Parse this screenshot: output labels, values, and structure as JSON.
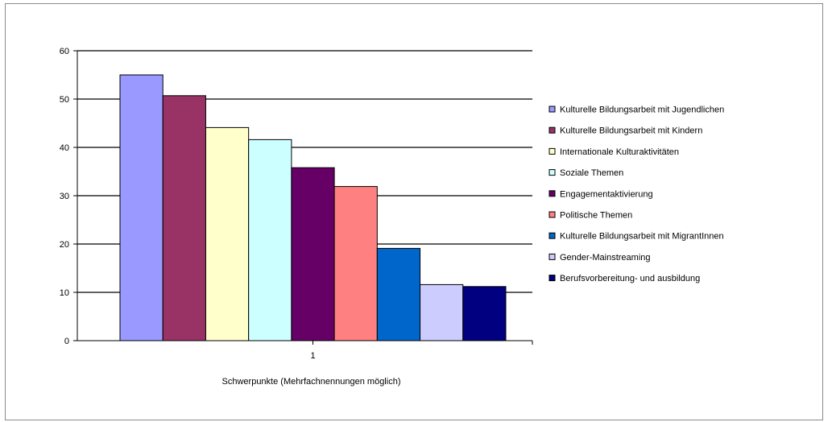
{
  "chart_data": {
    "type": "bar",
    "categories": [
      "1"
    ],
    "xlabel": "Schwerpunkte (Mehrfachnennungen möglich)",
    "ylabel": "",
    "ylim": [
      0,
      60
    ],
    "yticks": [
      0,
      10,
      20,
      30,
      40,
      50,
      60
    ],
    "grid": true,
    "legend_position": "right",
    "series": [
      {
        "name": "Kulturelle Bildungsarbeit mit Jugendlichen",
        "values": [
          55
        ],
        "color": "#9999ff"
      },
      {
        "name": "Kulturelle Bildungsarbeit mit Kindern",
        "values": [
          50.7
        ],
        "color": "#993366"
      },
      {
        "name": "Internationale Kulturaktivitäten",
        "values": [
          44.1
        ],
        "color": "#ffffcc"
      },
      {
        "name": "Soziale Themen",
        "values": [
          41.6
        ],
        "color": "#ccffff"
      },
      {
        "name": "Engagementaktivierung",
        "values": [
          35.8
        ],
        "color": "#660066"
      },
      {
        "name": "Politische Themen",
        "values": [
          31.9
        ],
        "color": "#ff8080"
      },
      {
        "name": "Kulturelle Bildungsarbeit mit MigrantInnen",
        "values": [
          19.1
        ],
        "color": "#0066cc"
      },
      {
        "name": "Gender-Mainstreaming",
        "values": [
          11.6
        ],
        "color": "#ccccff"
      },
      {
        "name": "Berufsvorbereitung- und ausbildung",
        "values": [
          11.2
        ],
        "color": "#000080"
      }
    ]
  }
}
